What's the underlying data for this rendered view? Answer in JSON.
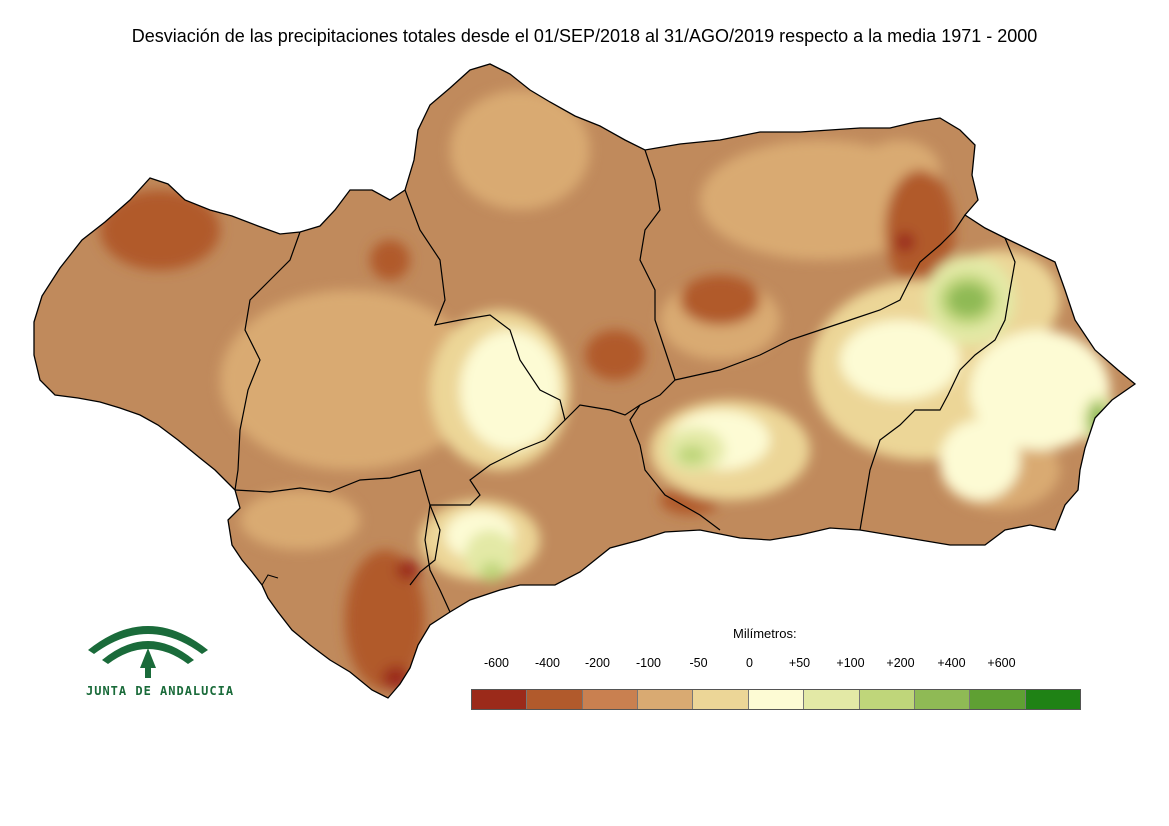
{
  "title": "Desviación de las precipitaciones totales desde el 01/SEP/2018 al 31/AGO/2019 respecto a la media 1971 - 2000",
  "legend": {
    "title": "Milímetros:",
    "ticks": [
      "-600",
      "-400",
      "-200",
      "-100",
      "-50",
      "0",
      "+50",
      "+100",
      "+200",
      "+400",
      "+600"
    ],
    "colors": [
      "#9b2a1a",
      "#b15a2c",
      "#c98050",
      "#d9aa72",
      "#ecd697",
      "#fdfbd4",
      "#e3e9a6",
      "#bfd67a",
      "#8fba55",
      "#5fa033",
      "#1f8215"
    ]
  },
  "logo": {
    "text": "JUNTA DE ANDALUCIA",
    "icon": "junta-de-andalucia-emblem",
    "color": "#1a6b3a"
  },
  "map": {
    "base_color": "#c08a5c",
    "border_color": "#000000"
  }
}
